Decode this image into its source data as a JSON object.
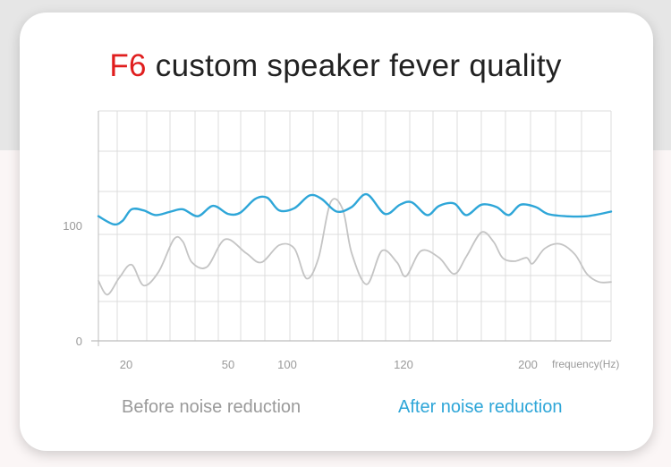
{
  "header": {
    "brand": "F6",
    "title_rest": " custom speaker fever quality"
  },
  "legend": {
    "before": "Before noise reduction",
    "after": "After noise reduction"
  },
  "colors": {
    "after_series": "#2ea6d8",
    "before_series": "#c4c4c4",
    "grid": "#dcdcdc",
    "tick_text": "#9a9a9a",
    "brand": "#e01e1e"
  },
  "chart_data": {
    "type": "line",
    "title": "",
    "xlabel": "frequency(Hz)",
    "ylabel": "",
    "x_tick_labels": [
      "20",
      "50",
      "100",
      "120",
      "200"
    ],
    "y_tick_labels": [
      "100",
      "0"
    ],
    "grid": true,
    "series": [
      {
        "name": "Before noise reduction",
        "color": "#c4c4c4",
        "points": [
          [
            0,
            52
          ],
          [
            0.015,
            40
          ],
          [
            0.035,
            55
          ],
          [
            0.055,
            66
          ],
          [
            0.075,
            48
          ],
          [
            0.1,
            60
          ],
          [
            0.125,
            88
          ],
          [
            0.14,
            86
          ],
          [
            0.155,
            68
          ],
          [
            0.18,
            64
          ],
          [
            0.21,
            88
          ],
          [
            0.245,
            76
          ],
          [
            0.27,
            68
          ],
          [
            0.3,
            83
          ],
          [
            0.325,
            80
          ],
          [
            0.345,
            54
          ],
          [
            0.365,
            72
          ],
          [
            0.385,
            120
          ],
          [
            0.405,
            114
          ],
          [
            0.42,
            76
          ],
          [
            0.445,
            49
          ],
          [
            0.47,
            78
          ],
          [
            0.495,
            68
          ],
          [
            0.51,
            56
          ],
          [
            0.535,
            78
          ],
          [
            0.565,
            72
          ],
          [
            0.59,
            58
          ],
          [
            0.61,
            73
          ],
          [
            0.635,
            94
          ],
          [
            0.655,
            86
          ],
          [
            0.67,
            72
          ],
          [
            0.69,
            69
          ],
          [
            0.71,
            72
          ],
          [
            0.72,
            67
          ],
          [
            0.74,
            80
          ],
          [
            0.765,
            84
          ],
          [
            0.79,
            75
          ],
          [
            0.81,
            58
          ],
          [
            0.83,
            51
          ],
          [
            0.85,
            51
          ]
        ]
      },
      {
        "name": "After noise reduction",
        "color": "#2ea6d8",
        "points": [
          [
            0,
            108
          ],
          [
            0.025,
            101
          ],
          [
            0.04,
            104
          ],
          [
            0.055,
            114
          ],
          [
            0.075,
            113
          ],
          [
            0.095,
            109
          ],
          [
            0.12,
            112
          ],
          [
            0.14,
            114
          ],
          [
            0.165,
            108
          ],
          [
            0.19,
            117
          ],
          [
            0.215,
            110
          ],
          [
            0.235,
            111
          ],
          [
            0.26,
            123
          ],
          [
            0.28,
            124
          ],
          [
            0.3,
            113
          ],
          [
            0.325,
            115
          ],
          [
            0.35,
            126
          ],
          [
            0.37,
            123
          ],
          [
            0.395,
            112
          ],
          [
            0.42,
            116
          ],
          [
            0.445,
            127
          ],
          [
            0.475,
            110
          ],
          [
            0.5,
            118
          ],
          [
            0.52,
            120
          ],
          [
            0.545,
            109
          ],
          [
            0.565,
            117
          ],
          [
            0.59,
            119
          ],
          [
            0.61,
            109
          ],
          [
            0.635,
            118
          ],
          [
            0.66,
            116
          ],
          [
            0.68,
            109
          ],
          [
            0.7,
            118
          ],
          [
            0.725,
            116
          ],
          [
            0.745,
            110
          ],
          [
            0.775,
            108
          ],
          [
            0.81,
            108
          ],
          [
            0.85,
            112
          ]
        ]
      }
    ]
  }
}
